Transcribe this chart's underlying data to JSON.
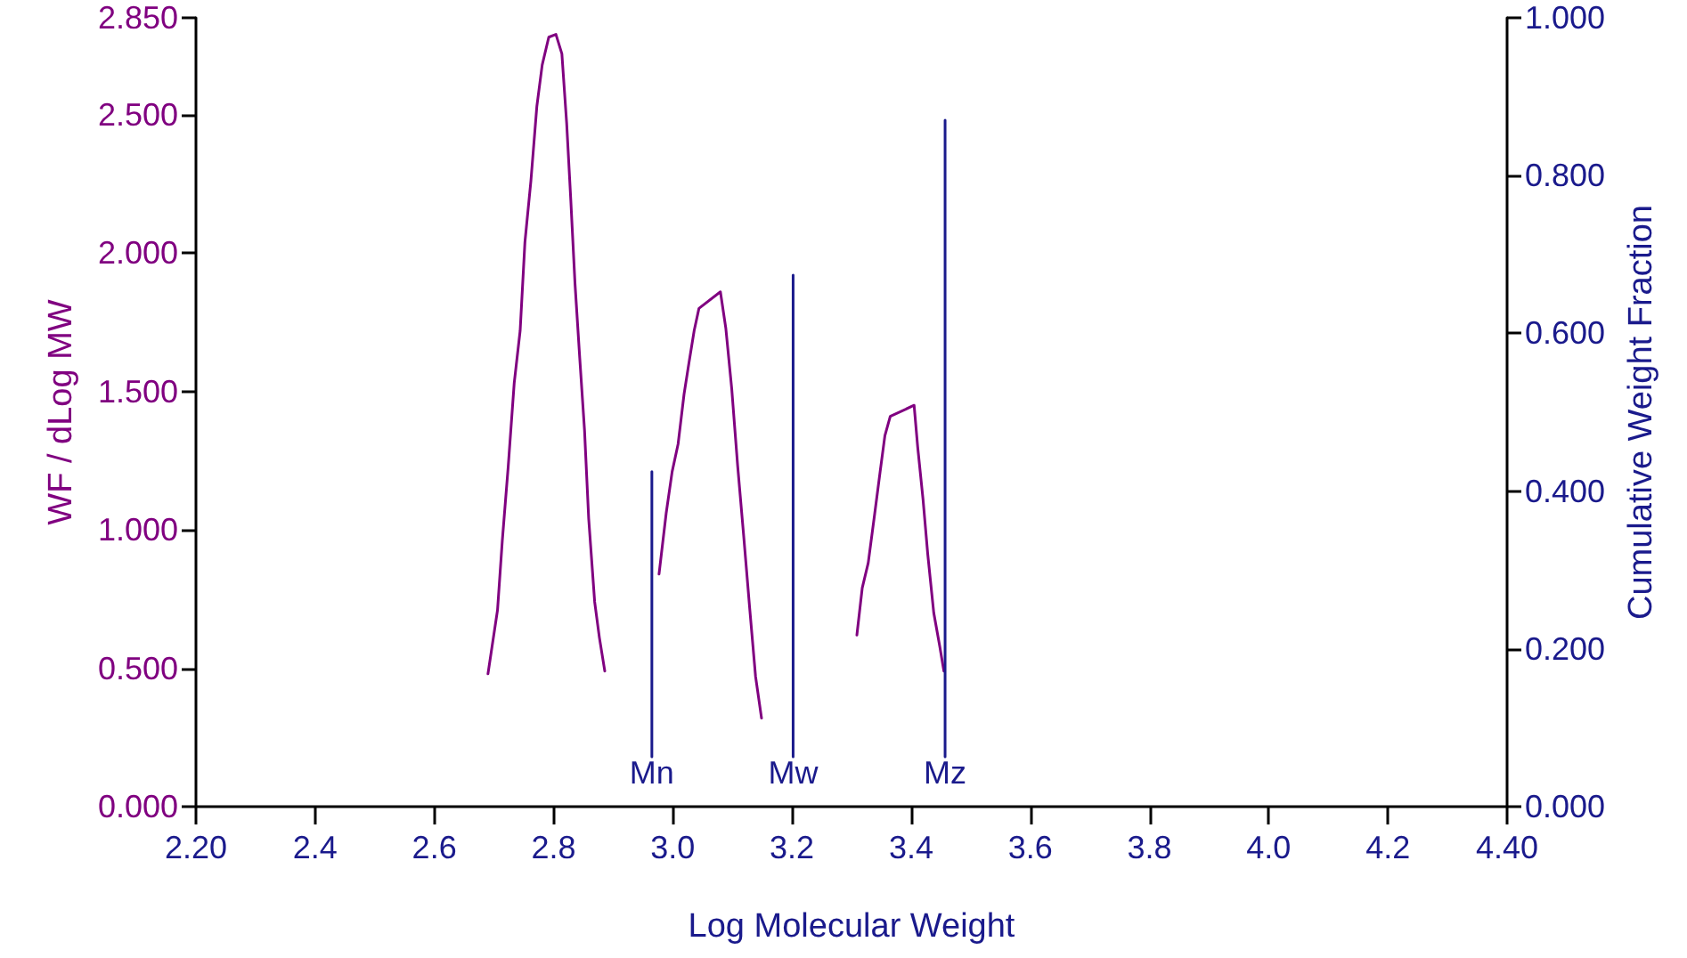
{
  "chart_data": {
    "type": "line",
    "xlabel": "Log Molecular Weight",
    "ylabel": "WF / dLog MW",
    "y2label": "Cumulative Weight Fraction",
    "xlim": [
      2.2,
      4.4
    ],
    "xticks": [
      {
        "value": 2.2,
        "label": "2.20"
      },
      2.4,
      2.6,
      2.8,
      {
        "value": 3.0,
        "label": "3.0"
      },
      3.2,
      3.4,
      3.6,
      3.8,
      {
        "value": 4.0,
        "label": "4.0"
      },
      4.2,
      {
        "value": 4.4,
        "label": "4.40"
      }
    ],
    "ylim": [
      0,
      2.85
    ],
    "yticks": [
      {
        "value": 0,
        "label": "0.000"
      },
      {
        "value": 0.5,
        "label": "0.500"
      },
      {
        "value": 1,
        "label": "1.000"
      },
      {
        "value": 1.5,
        "label": "1.500"
      },
      {
        "value": 2,
        "label": "2.000"
      },
      {
        "value": 2.5,
        "label": "2.500"
      },
      {
        "value": 2.85,
        "label": "2.850"
      }
    ],
    "y2lim": [
      0,
      1
    ],
    "y2ticks": [
      {
        "value": 0,
        "label": "0.000"
      },
      {
        "value": 0.2,
        "label": "0.200"
      },
      {
        "value": 0.4,
        "label": "0.400"
      },
      {
        "value": 0.6,
        "label": "0.600"
      },
      {
        "value": 0.8,
        "label": "0.800"
      },
      {
        "value": 1,
        "label": "1.000"
      }
    ],
    "grid": false,
    "marker": "none",
    "line_style": "solid",
    "series": [
      {
        "color": "#800080",
        "x": [
          2.69,
          2.706,
          2.714,
          2.724,
          2.734,
          2.744,
          2.752,
          2.762,
          2.772,
          2.781,
          2.792,
          2.804,
          2.814,
          2.822,
          2.829,
          2.836,
          2.844,
          2.852,
          2.859,
          2.869,
          2.877,
          2.886,
          2.93,
          2.977,
          2.989,
          2.999,
          3.009,
          3.019,
          3.027,
          3.036,
          3.044,
          3.08,
          3.089,
          3.099,
          3.109,
          3.119,
          3.129,
          3.139,
          3.149,
          3.23,
          3.309,
          3.318,
          3.328,
          3.339,
          3.348,
          3.356,
          3.365,
          3.405,
          3.411,
          3.42,
          3.428,
          3.438,
          3.448,
          3.455
        ],
        "values": [
          0.48,
          0.71,
          0.96,
          1.23,
          1.53,
          1.72,
          2.04,
          2.26,
          2.53,
          2.68,
          2.78,
          2.79,
          2.72,
          2.47,
          2.19,
          1.89,
          1.62,
          1.36,
          1.04,
          0.74,
          0.61,
          0.49,
          null,
          0.84,
          1.06,
          1.21,
          1.31,
          1.49,
          1.6,
          1.72,
          1.8,
          1.86,
          1.73,
          1.51,
          1.23,
          0.98,
          0.72,
          0.47,
          0.32,
          null,
          0.62,
          0.79,
          0.88,
          1.06,
          1.21,
          1.34,
          1.41,
          1.45,
          1.3,
          1.11,
          0.91,
          0.7,
          0.58,
          0.49
        ]
      },
      {
        "color": "#1a1a8c",
        "x": [
          2.965,
          2.965
        ],
        "values": [
          0.18,
          1.21
        ]
      },
      {
        "color": "#1a1a8c",
        "x": [
          3.202,
          3.202
        ],
        "values": [
          0.18,
          1.92
        ]
      },
      {
        "color": "#1a1a8c",
        "x": [
          3.457,
          3.457
        ],
        "values": [
          0.18,
          2.48
        ]
      }
    ],
    "annotations": [
      {
        "text": "Mn",
        "x": 2.965,
        "y": 0.18
      },
      {
        "text": "Mw",
        "x": 3.202,
        "y": 0.18
      },
      {
        "text": "Mz",
        "x": 3.457,
        "y": 0.18
      }
    ]
  }
}
